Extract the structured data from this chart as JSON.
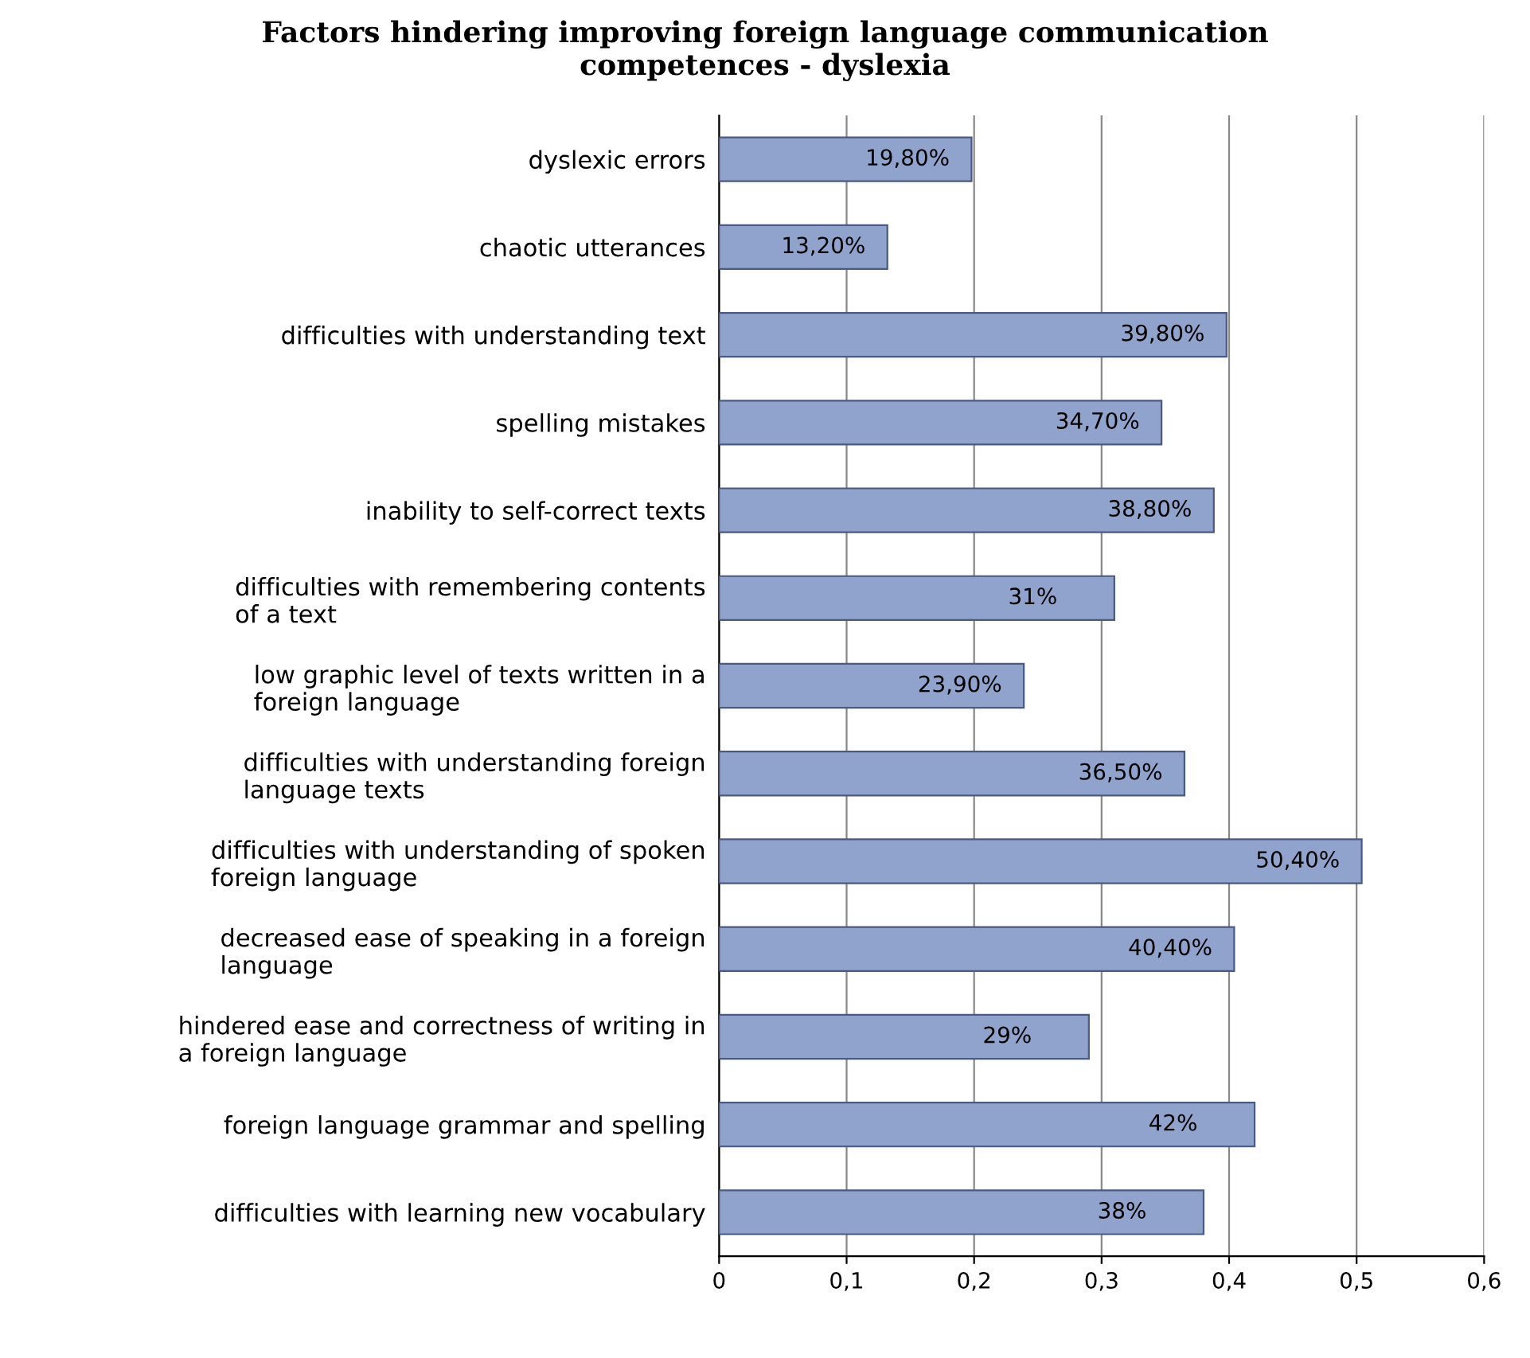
{
  "chart_data": {
    "type": "bar",
    "orientation": "horizontal",
    "title": "Factors hindering improving foreign language communication\ncompetences - dyslexia",
    "categories": [
      "dyslexic errors",
      "chaotic utterances",
      "difficulties with understanding text",
      "spelling mistakes",
      "inability to self-correct texts",
      "difficulties with remembering contents\nof a text",
      "low graphic level of texts written in a\nforeign language",
      "difficulties with understanding foreign\nlanguage texts",
      "difficulties with understanding of spoken\nforeign language",
      "decreased ease of speaking in a foreign\nlanguage",
      "hindered ease and correctness of writing in\na foreign language",
      "foreign language grammar and spelling",
      "difficulties with learning new vocabulary"
    ],
    "values": [
      0.198,
      0.132,
      0.398,
      0.347,
      0.388,
      0.31,
      0.239,
      0.365,
      0.504,
      0.404,
      0.29,
      0.42,
      0.38
    ],
    "value_labels": [
      "19,80%",
      "13,20%",
      "39,80%",
      "34,70%",
      "38,80%",
      "31%",
      "23,90%",
      "36,50%",
      "50,40%",
      "40,40%",
      "29%",
      "42%",
      "38%"
    ],
    "color": "#8fa3cc",
    "xlim": [
      0,
      0.6
    ],
    "xticks": [
      0,
      {
        "value": 0.1,
        "label": "0,1"
      },
      {
        "value": 0.2,
        "label": "0,2"
      },
      {
        "value": 0.3,
        "label": "0,3"
      },
      {
        "value": 0.4,
        "label": "0,4"
      },
      {
        "value": 0.5,
        "label": "0,5"
      },
      {
        "value": 0.6,
        "label": "0,6"
      }
    ],
    "grid": "x",
    "legend": false
  }
}
